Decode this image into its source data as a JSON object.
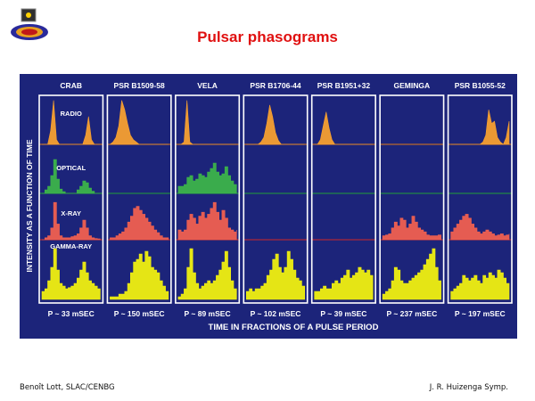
{
  "slide": {
    "title": "Pulsar phasograms",
    "footer_left": "Benoît Lott, SLAC/CENBG",
    "footer_right": "J. R. Huizenga Symp."
  },
  "colors": {
    "title": "#e01010",
    "figure_background": "#1c247a",
    "panel_border": "#ffffff",
    "radio": "#f7a030",
    "optical": "#3cb44a",
    "xray": "#f06050",
    "gamma": "#f0f010",
    "radio_baseline": "#e07818",
    "optical_baseline": "#22a038",
    "xray_baseline": "#d02828"
  },
  "chart_data": {
    "type": "area",
    "title": "",
    "xlabel": "TIME IN FRACTIONS OF A PULSE PERIOD",
    "ylabel": "INTENSITY AS A FUNCTION OF TIME",
    "bands": [
      "RADIO",
      "OPTICAL",
      "X-RAY",
      "GAMMA-RAY"
    ],
    "x": [
      0,
      0.05,
      0.1,
      0.15,
      0.2,
      0.25,
      0.3,
      0.35,
      0.4,
      0.45,
      0.5,
      0.55,
      0.6,
      0.65,
      0.7,
      0.75,
      0.8,
      0.85,
      0.9,
      0.95,
      1
    ],
    "pulsars": [
      {
        "name": "CRAB",
        "period": "P ~ 33 mSEC",
        "series": {
          "RADIO": [
            0,
            0,
            0,
            0.3,
            0.95,
            0.1,
            0,
            0,
            0,
            0,
            0,
            0,
            0,
            0,
            0,
            0.2,
            0.6,
            0.1,
            0,
            0,
            0
          ],
          "OPTICAL": [
            0,
            0.1,
            0.2,
            0.5,
            0.95,
            0.4,
            0.12,
            0.05,
            0,
            0,
            0,
            0,
            0.1,
            0.2,
            0.35,
            0.3,
            0.15,
            0.06,
            0,
            0,
            0
          ],
          "X-RAY": [
            0,
            0.05,
            0.1,
            0.3,
            0.95,
            0.4,
            0.1,
            0.05,
            0.05,
            0.05,
            0.08,
            0.1,
            0.15,
            0.3,
            0.5,
            0.3,
            0.1,
            0.05,
            0.03,
            0.02,
            0
          ],
          "GAMMA-RAY": [
            0.15,
            0.2,
            0.35,
            0.6,
            0.95,
            0.55,
            0.3,
            0.25,
            0.2,
            0.22,
            0.25,
            0.3,
            0.4,
            0.55,
            0.7,
            0.5,
            0.35,
            0.3,
            0.25,
            0.2,
            0.15
          ]
        }
      },
      {
        "name": "PSR B1509-58",
        "period": "P ~ 150 mSEC",
        "series": {
          "RADIO": [
            0,
            0.05,
            0.15,
            0.4,
            0.95,
            0.75,
            0.45,
            0.2,
            0.1,
            0.05,
            0,
            0,
            0,
            0,
            0,
            0,
            0,
            0,
            0,
            0,
            0
          ],
          "X-RAY": [
            0.05,
            0.05,
            0.1,
            0.15,
            0.2,
            0.3,
            0.45,
            0.6,
            0.8,
            0.85,
            0.75,
            0.65,
            0.55,
            0.45,
            0.35,
            0.25,
            0.18,
            0.1,
            0.05,
            0.05,
            0.05
          ],
          "GAMMA-RAY": [
            0.05,
            0.05,
            0.05,
            0.1,
            0.1,
            0.15,
            0.3,
            0.5,
            0.7,
            0.75,
            0.85,
            0.7,
            0.9,
            0.8,
            0.6,
            0.55,
            0.5,
            0.35,
            0.25,
            0.15,
            0.1
          ]
        }
      },
      {
        "name": "VELA",
        "period": "P ~ 89 mSEC",
        "series": {
          "RADIO": [
            0,
            0,
            0.05,
            0.95,
            0.05,
            0,
            0,
            0,
            0,
            0,
            0,
            0,
            0,
            0,
            0,
            0,
            0,
            0,
            0,
            0,
            0
          ],
          "OPTICAL": [
            0.2,
            0.2,
            0.25,
            0.45,
            0.5,
            0.35,
            0.4,
            0.55,
            0.5,
            0.45,
            0.6,
            0.7,
            0.85,
            0.6,
            0.5,
            0.55,
            0.75,
            0.5,
            0.35,
            0.25,
            0.2
          ],
          "X-RAY": [
            0.25,
            0.2,
            0.25,
            0.5,
            0.65,
            0.55,
            0.4,
            0.6,
            0.7,
            0.55,
            0.65,
            0.8,
            0.95,
            0.7,
            0.5,
            0.75,
            0.55,
            0.3,
            0.25,
            0.2,
            0.25
          ],
          "GAMMA-RAY": [
            0.05,
            0.1,
            0.2,
            0.6,
            0.95,
            0.5,
            0.3,
            0.2,
            0.25,
            0.3,
            0.35,
            0.3,
            0.35,
            0.45,
            0.55,
            0.7,
            0.9,
            0.6,
            0.35,
            0.2,
            0.1
          ]
        }
      },
      {
        "name": "PSR B1706-44",
        "period": "P ~ 102 mSEC",
        "series": {
          "RADIO": [
            0,
            0,
            0,
            0,
            0,
            0.05,
            0.15,
            0.45,
            0.85,
            0.6,
            0.25,
            0.08,
            0,
            0,
            0,
            0,
            0,
            0,
            0,
            0,
            0
          ],
          "GAMMA-RAY": [
            0.15,
            0.2,
            0.15,
            0.2,
            0.2,
            0.25,
            0.3,
            0.45,
            0.55,
            0.75,
            0.85,
            0.6,
            0.5,
            0.6,
            0.9,
            0.75,
            0.55,
            0.4,
            0.35,
            0.25,
            0.2
          ]
        }
      },
      {
        "name": "PSR B1951+32",
        "period": "P ~ 39 mSEC",
        "series": {
          "RADIO": [
            0,
            0,
            0.1,
            0.4,
            0.7,
            0.35,
            0.1,
            0,
            0,
            0,
            0,
            0,
            0,
            0,
            0,
            0,
            0,
            0,
            0,
            0,
            0
          ],
          "GAMMA-RAY": [
            0.15,
            0.15,
            0.2,
            0.25,
            0.2,
            0.2,
            0.3,
            0.35,
            0.3,
            0.4,
            0.45,
            0.55,
            0.4,
            0.45,
            0.5,
            0.6,
            0.55,
            0.5,
            0.55,
            0.45,
            0.3
          ]
        }
      },
      {
        "name": "GEMINGA",
        "period": "P ~ 237 mSEC",
        "series": {
          "X-RAY": [
            0.1,
            0.12,
            0.15,
            0.3,
            0.45,
            0.35,
            0.55,
            0.5,
            0.3,
            0.4,
            0.6,
            0.45,
            0.3,
            0.25,
            0.2,
            0.12,
            0.1,
            0.1,
            0.1,
            0.12,
            0.1
          ],
          "GAMMA-RAY": [
            0.1,
            0.15,
            0.2,
            0.35,
            0.6,
            0.55,
            0.35,
            0.3,
            0.3,
            0.35,
            0.4,
            0.45,
            0.5,
            0.55,
            0.65,
            0.75,
            0.85,
            0.95,
            0.6,
            0.35,
            0.2
          ]
        }
      },
      {
        "name": "PSR B1055-52",
        "period": "P ~ 197 mSEC",
        "series": {
          "RADIO": [
            0,
            0,
            0,
            0,
            0,
            0,
            0,
            0,
            0,
            0,
            0,
            0.05,
            0.2,
            0.75,
            0.45,
            0.5,
            0.15,
            0.05,
            0,
            0.15,
            0.5
          ],
          "X-RAY": [
            0.2,
            0.3,
            0.4,
            0.5,
            0.6,
            0.65,
            0.55,
            0.4,
            0.3,
            0.2,
            0.15,
            0.2,
            0.25,
            0.2,
            0.15,
            0.1,
            0.12,
            0.15,
            0.1,
            0.12,
            0.15
          ],
          "GAMMA-RAY": [
            0.15,
            0.2,
            0.25,
            0.3,
            0.45,
            0.4,
            0.35,
            0.4,
            0.45,
            0.35,
            0.3,
            0.45,
            0.4,
            0.5,
            0.45,
            0.4,
            0.55,
            0.5,
            0.4,
            0.3,
            0.2
          ]
        }
      }
    ]
  }
}
